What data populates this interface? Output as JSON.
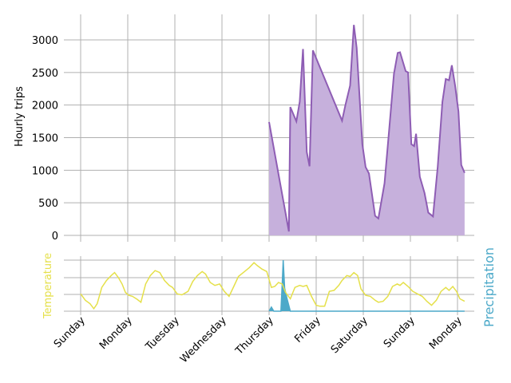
{
  "chart_data": {
    "type": "area",
    "x_categories": [
      "Sunday",
      "Monday",
      "Tuesday",
      "Wednesday",
      "Thursday",
      "Friday",
      "Saturday",
      "Sunday",
      "Monday"
    ],
    "top_panel": {
      "ylabel": "Hourly trips",
      "ylim": [
        -150,
        3400
      ],
      "yticks": [
        0,
        500,
        1000,
        1500,
        2000,
        2500,
        3000
      ],
      "grid": true,
      "series": [
        {
          "color": "#8e5db4",
          "fill": "#c6b0dc",
          "points": [
            [
              4.0,
              1740
            ],
            [
              4.42,
              60
            ],
            [
              4.45,
              1970
            ],
            [
              4.58,
              1750
            ],
            [
              4.65,
              2050
            ],
            [
              4.72,
              2860
            ],
            [
              4.8,
              1280
            ],
            [
              4.86,
              1060
            ],
            [
              4.93,
              2840
            ],
            [
              5.25,
              2280
            ],
            [
              5.55,
              1760
            ],
            [
              5.62,
              2000
            ],
            [
              5.72,
              2300
            ],
            [
              5.8,
              3230
            ],
            [
              5.86,
              2880
            ],
            [
              5.98,
              1400
            ],
            [
              6.05,
              1050
            ],
            [
              6.12,
              950
            ],
            [
              6.25,
              300
            ],
            [
              6.32,
              260
            ],
            [
              6.45,
              800
            ],
            [
              6.55,
              1620
            ],
            [
              6.65,
              2480
            ],
            [
              6.73,
              2800
            ],
            [
              6.78,
              2810
            ],
            [
              6.9,
              2520
            ],
            [
              6.95,
              2500
            ],
            [
              7.02,
              1400
            ],
            [
              7.08,
              1370
            ],
            [
              7.12,
              1560
            ],
            [
              7.2,
              900
            ],
            [
              7.3,
              650
            ],
            [
              7.38,
              350
            ],
            [
              7.48,
              290
            ],
            [
              7.58,
              1050
            ],
            [
              7.68,
              2050
            ],
            [
              7.75,
              2400
            ],
            [
              7.82,
              2380
            ],
            [
              7.88,
              2610
            ],
            [
              7.95,
              2300
            ],
            [
              8.02,
              1900
            ],
            [
              8.08,
              1080
            ],
            [
              8.15,
              960
            ]
          ]
        }
      ]
    },
    "bottom_panel": {
      "left_ylabel": "Temperature",
      "right_ylabel": "Precipitation",
      "temperature_color": "#e5e04a",
      "precipitation_color": "#4ca9c9",
      "precipitation_fill": "#4ca9c9",
      "temperature": [
        [
          0.0,
          0.35
        ],
        [
          0.1,
          0.22
        ],
        [
          0.2,
          0.15
        ],
        [
          0.28,
          0.05
        ],
        [
          0.35,
          0.15
        ],
        [
          0.45,
          0.48
        ],
        [
          0.55,
          0.62
        ],
        [
          0.65,
          0.72
        ],
        [
          0.72,
          0.78
        ],
        [
          0.8,
          0.68
        ],
        [
          0.88,
          0.55
        ],
        [
          0.95,
          0.38
        ],
        [
          1.02,
          0.32
        ],
        [
          1.1,
          0.3
        ],
        [
          1.2,
          0.24
        ],
        [
          1.28,
          0.18
        ],
        [
          1.38,
          0.55
        ],
        [
          1.48,
          0.72
        ],
        [
          1.58,
          0.82
        ],
        [
          1.68,
          0.78
        ],
        [
          1.78,
          0.62
        ],
        [
          1.88,
          0.52
        ],
        [
          1.95,
          0.48
        ],
        [
          2.05,
          0.35
        ],
        [
          2.15,
          0.33
        ],
        [
          2.28,
          0.4
        ],
        [
          2.38,
          0.6
        ],
        [
          2.48,
          0.72
        ],
        [
          2.58,
          0.8
        ],
        [
          2.65,
          0.75
        ],
        [
          2.75,
          0.58
        ],
        [
          2.85,
          0.52
        ],
        [
          2.95,
          0.55
        ],
        [
          3.05,
          0.4
        ],
        [
          3.15,
          0.3
        ],
        [
          3.25,
          0.5
        ],
        [
          3.35,
          0.7
        ],
        [
          3.48,
          0.8
        ],
        [
          3.58,
          0.88
        ],
        [
          3.68,
          0.98
        ],
        [
          3.75,
          0.92
        ],
        [
          3.85,
          0.85
        ],
        [
          3.95,
          0.8
        ],
        [
          4.05,
          0.48
        ],
        [
          4.12,
          0.5
        ],
        [
          4.2,
          0.58
        ],
        [
          4.28,
          0.55
        ],
        [
          4.35,
          0.38
        ],
        [
          4.45,
          0.25
        ],
        [
          4.55,
          0.48
        ],
        [
          4.65,
          0.52
        ],
        [
          4.72,
          0.5
        ],
        [
          4.8,
          0.52
        ],
        [
          4.9,
          0.3
        ],
        [
          5.0,
          0.12
        ],
        [
          5.08,
          0.1
        ],
        [
          5.18,
          0.1
        ],
        [
          5.28,
          0.4
        ],
        [
          5.38,
          0.42
        ],
        [
          5.48,
          0.52
        ],
        [
          5.55,
          0.62
        ],
        [
          5.65,
          0.72
        ],
        [
          5.72,
          0.7
        ],
        [
          5.8,
          0.78
        ],
        [
          5.88,
          0.72
        ],
        [
          5.95,
          0.45
        ],
        [
          6.05,
          0.32
        ],
        [
          6.15,
          0.3
        ],
        [
          6.25,
          0.22
        ],
        [
          6.32,
          0.18
        ],
        [
          6.42,
          0.2
        ],
        [
          6.52,
          0.3
        ],
        [
          6.62,
          0.5
        ],
        [
          6.72,
          0.55
        ],
        [
          6.78,
          0.52
        ],
        [
          6.85,
          0.58
        ],
        [
          6.95,
          0.5
        ],
        [
          7.05,
          0.4
        ],
        [
          7.15,
          0.35
        ],
        [
          7.25,
          0.3
        ],
        [
          7.35,
          0.2
        ],
        [
          7.45,
          0.12
        ],
        [
          7.55,
          0.22
        ],
        [
          7.65,
          0.4
        ],
        [
          7.75,
          0.48
        ],
        [
          7.82,
          0.42
        ],
        [
          7.9,
          0.5
        ],
        [
          7.98,
          0.4
        ],
        [
          8.05,
          0.25
        ],
        [
          8.15,
          0.2
        ]
      ],
      "precipitation": [
        [
          4.0,
          0.0
        ],
        [
          4.05,
          0.08
        ],
        [
          4.1,
          0.0
        ],
        [
          4.25,
          0.0
        ],
        [
          4.28,
          0.55
        ],
        [
          4.3,
          1.0
        ],
        [
          4.33,
          0.45
        ],
        [
          4.38,
          0.25
        ],
        [
          4.45,
          0.0
        ],
        [
          8.15,
          0.0
        ]
      ]
    }
  }
}
